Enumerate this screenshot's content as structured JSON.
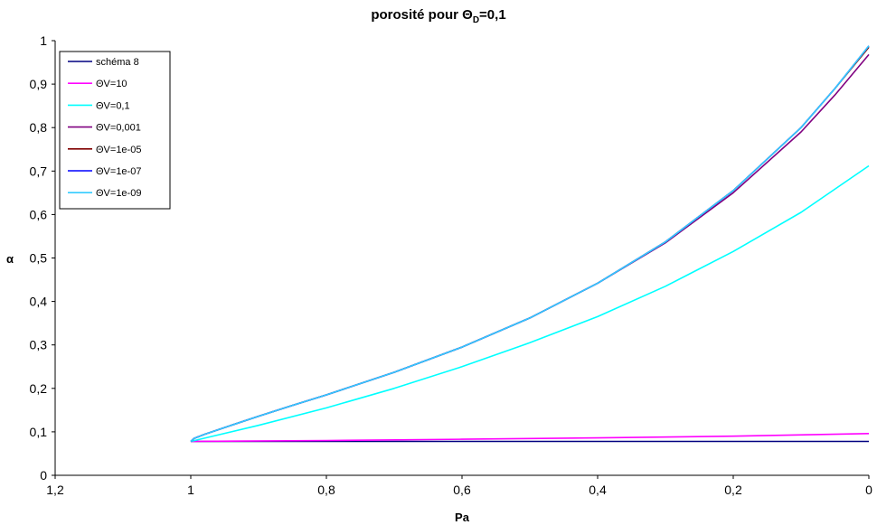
{
  "chart_data": {
    "type": "line",
    "title": {
      "main": "porosité pour Θ",
      "sub": "D",
      "suffix": "=0,1"
    },
    "xlabel": "Pa",
    "ylabel": "α",
    "xlim": [
      1.2,
      0
    ],
    "ylim": [
      0,
      1
    ],
    "x_ticks": [
      1.2,
      1,
      0.8,
      0.6,
      0.4,
      0.2,
      0
    ],
    "x_tick_labels": [
      "1,2",
      "1",
      "0,8",
      "0,6",
      "0,4",
      "0,2",
      "0"
    ],
    "y_ticks": [
      0,
      0.1,
      0.2,
      0.3,
      0.4,
      0.5,
      0.6,
      0.7,
      0.8,
      0.9,
      1
    ],
    "y_tick_labels": [
      "0",
      "0,1",
      "0,2",
      "0,3",
      "0,4",
      "0,5",
      "0,6",
      "0,7",
      "0,8",
      "0,9",
      "1"
    ],
    "grid": false,
    "legend_position": "top-left",
    "series": [
      {
        "name": "schéma 8",
        "color": "#000080",
        "x": [
          1.0,
          0.8,
          0.6,
          0.4,
          0.2,
          0.0
        ],
        "y": [
          0.078,
          0.078,
          0.078,
          0.078,
          0.078,
          0.078
        ]
      },
      {
        "name": "ΘV=10",
        "color": "#FF00FF",
        "x": [
          1.0,
          0.8,
          0.6,
          0.4,
          0.2,
          0.0
        ],
        "y": [
          0.078,
          0.08,
          0.083,
          0.086,
          0.09,
          0.096
        ]
      },
      {
        "name": "ΘV=0,1",
        "color": "#00FFFF",
        "x": [
          1.0,
          0.9,
          0.8,
          0.7,
          0.6,
          0.5,
          0.4,
          0.3,
          0.2,
          0.1,
          0.0
        ],
        "y": [
          0.078,
          0.115,
          0.155,
          0.2,
          0.25,
          0.305,
          0.365,
          0.435,
          0.515,
          0.605,
          0.712
        ]
      },
      {
        "name": "ΘV=0,001",
        "color": "#800080",
        "x": [
          1.0,
          0.995,
          0.98,
          0.95,
          0.9,
          0.85,
          0.8,
          0.7,
          0.6,
          0.5,
          0.4,
          0.3,
          0.2,
          0.1,
          0.05,
          0.0
        ],
        "y": [
          0.078,
          0.085,
          0.094,
          0.11,
          0.136,
          0.161,
          0.185,
          0.237,
          0.295,
          0.362,
          0.442,
          0.535,
          0.65,
          0.79,
          0.875,
          0.968
        ]
      },
      {
        "name": "ΘV=1e-05",
        "color": "#800000",
        "x": [
          1.0,
          0.995,
          0.98,
          0.95,
          0.9,
          0.85,
          0.8,
          0.7,
          0.6,
          0.5,
          0.4,
          0.3,
          0.2,
          0.1,
          0.05,
          0.0
        ],
        "y": [
          0.078,
          0.085,
          0.094,
          0.11,
          0.136,
          0.161,
          0.185,
          0.237,
          0.295,
          0.362,
          0.442,
          0.537,
          0.655,
          0.8,
          0.89,
          0.985
        ]
      },
      {
        "name": "ΘV=1e-07",
        "color": "#0000FF",
        "x": [
          1.0,
          0.995,
          0.98,
          0.95,
          0.9,
          0.85,
          0.8,
          0.7,
          0.6,
          0.5,
          0.4,
          0.3,
          0.2,
          0.1,
          0.05,
          0.0
        ],
        "y": [
          0.078,
          0.085,
          0.094,
          0.11,
          0.136,
          0.161,
          0.185,
          0.237,
          0.295,
          0.362,
          0.442,
          0.537,
          0.655,
          0.8,
          0.89,
          0.988
        ]
      },
      {
        "name": "ΘV=1e-09",
        "color": "#33CCFF",
        "x": [
          1.0,
          0.995,
          0.98,
          0.95,
          0.9,
          0.85,
          0.8,
          0.7,
          0.6,
          0.5,
          0.4,
          0.3,
          0.2,
          0.1,
          0.05,
          0.0
        ],
        "y": [
          0.078,
          0.085,
          0.094,
          0.11,
          0.136,
          0.161,
          0.185,
          0.237,
          0.295,
          0.362,
          0.442,
          0.537,
          0.655,
          0.8,
          0.89,
          0.988
        ]
      }
    ]
  }
}
